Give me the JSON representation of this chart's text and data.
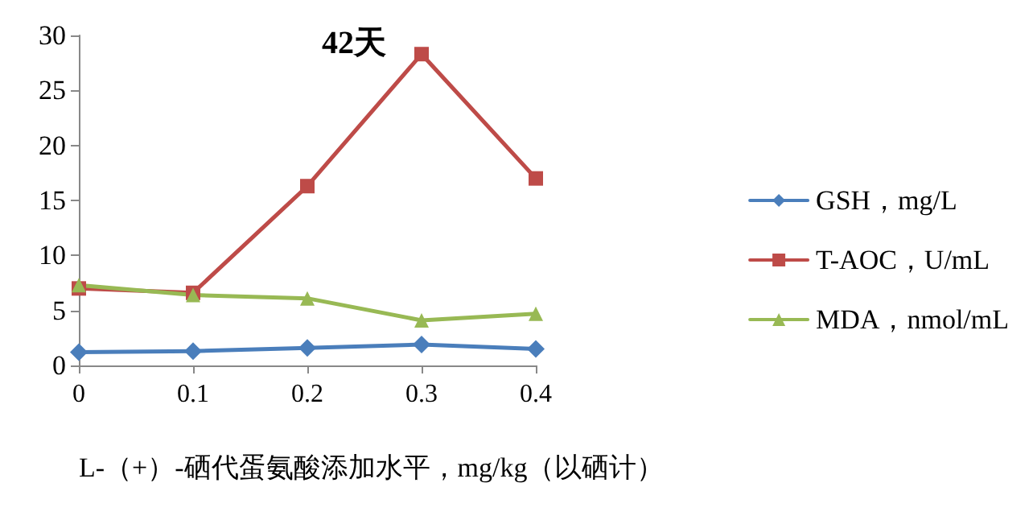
{
  "chart_data": {
    "type": "line",
    "title": "42天",
    "xlabel": "L-（+）-硒代蛋氨酸添加水平，mg/kg（以硒计）",
    "categories": [
      "0",
      "0.1",
      "0.2",
      "0.3",
      "0.4"
    ],
    "series": [
      {
        "name": "GSH，mg/L",
        "color": "#4a7ebb",
        "marker": "diamond",
        "values": [
          1.2,
          1.3,
          1.6,
          1.9,
          1.5
        ]
      },
      {
        "name": "T-AOC，U/mL",
        "color": "#be4b48",
        "marker": "square",
        "values": [
          7.0,
          6.6,
          16.3,
          28.3,
          17.0
        ]
      },
      {
        "name": "MDA，nmol/mL",
        "color": "#98b954",
        "marker": "triangle",
        "values": [
          7.3,
          6.4,
          6.1,
          4.1,
          4.7
        ]
      }
    ],
    "ylim": [
      0,
      30
    ],
    "yticks": [
      0,
      5,
      10,
      15,
      20,
      25,
      30
    ],
    "grid": false,
    "legend": "right"
  }
}
